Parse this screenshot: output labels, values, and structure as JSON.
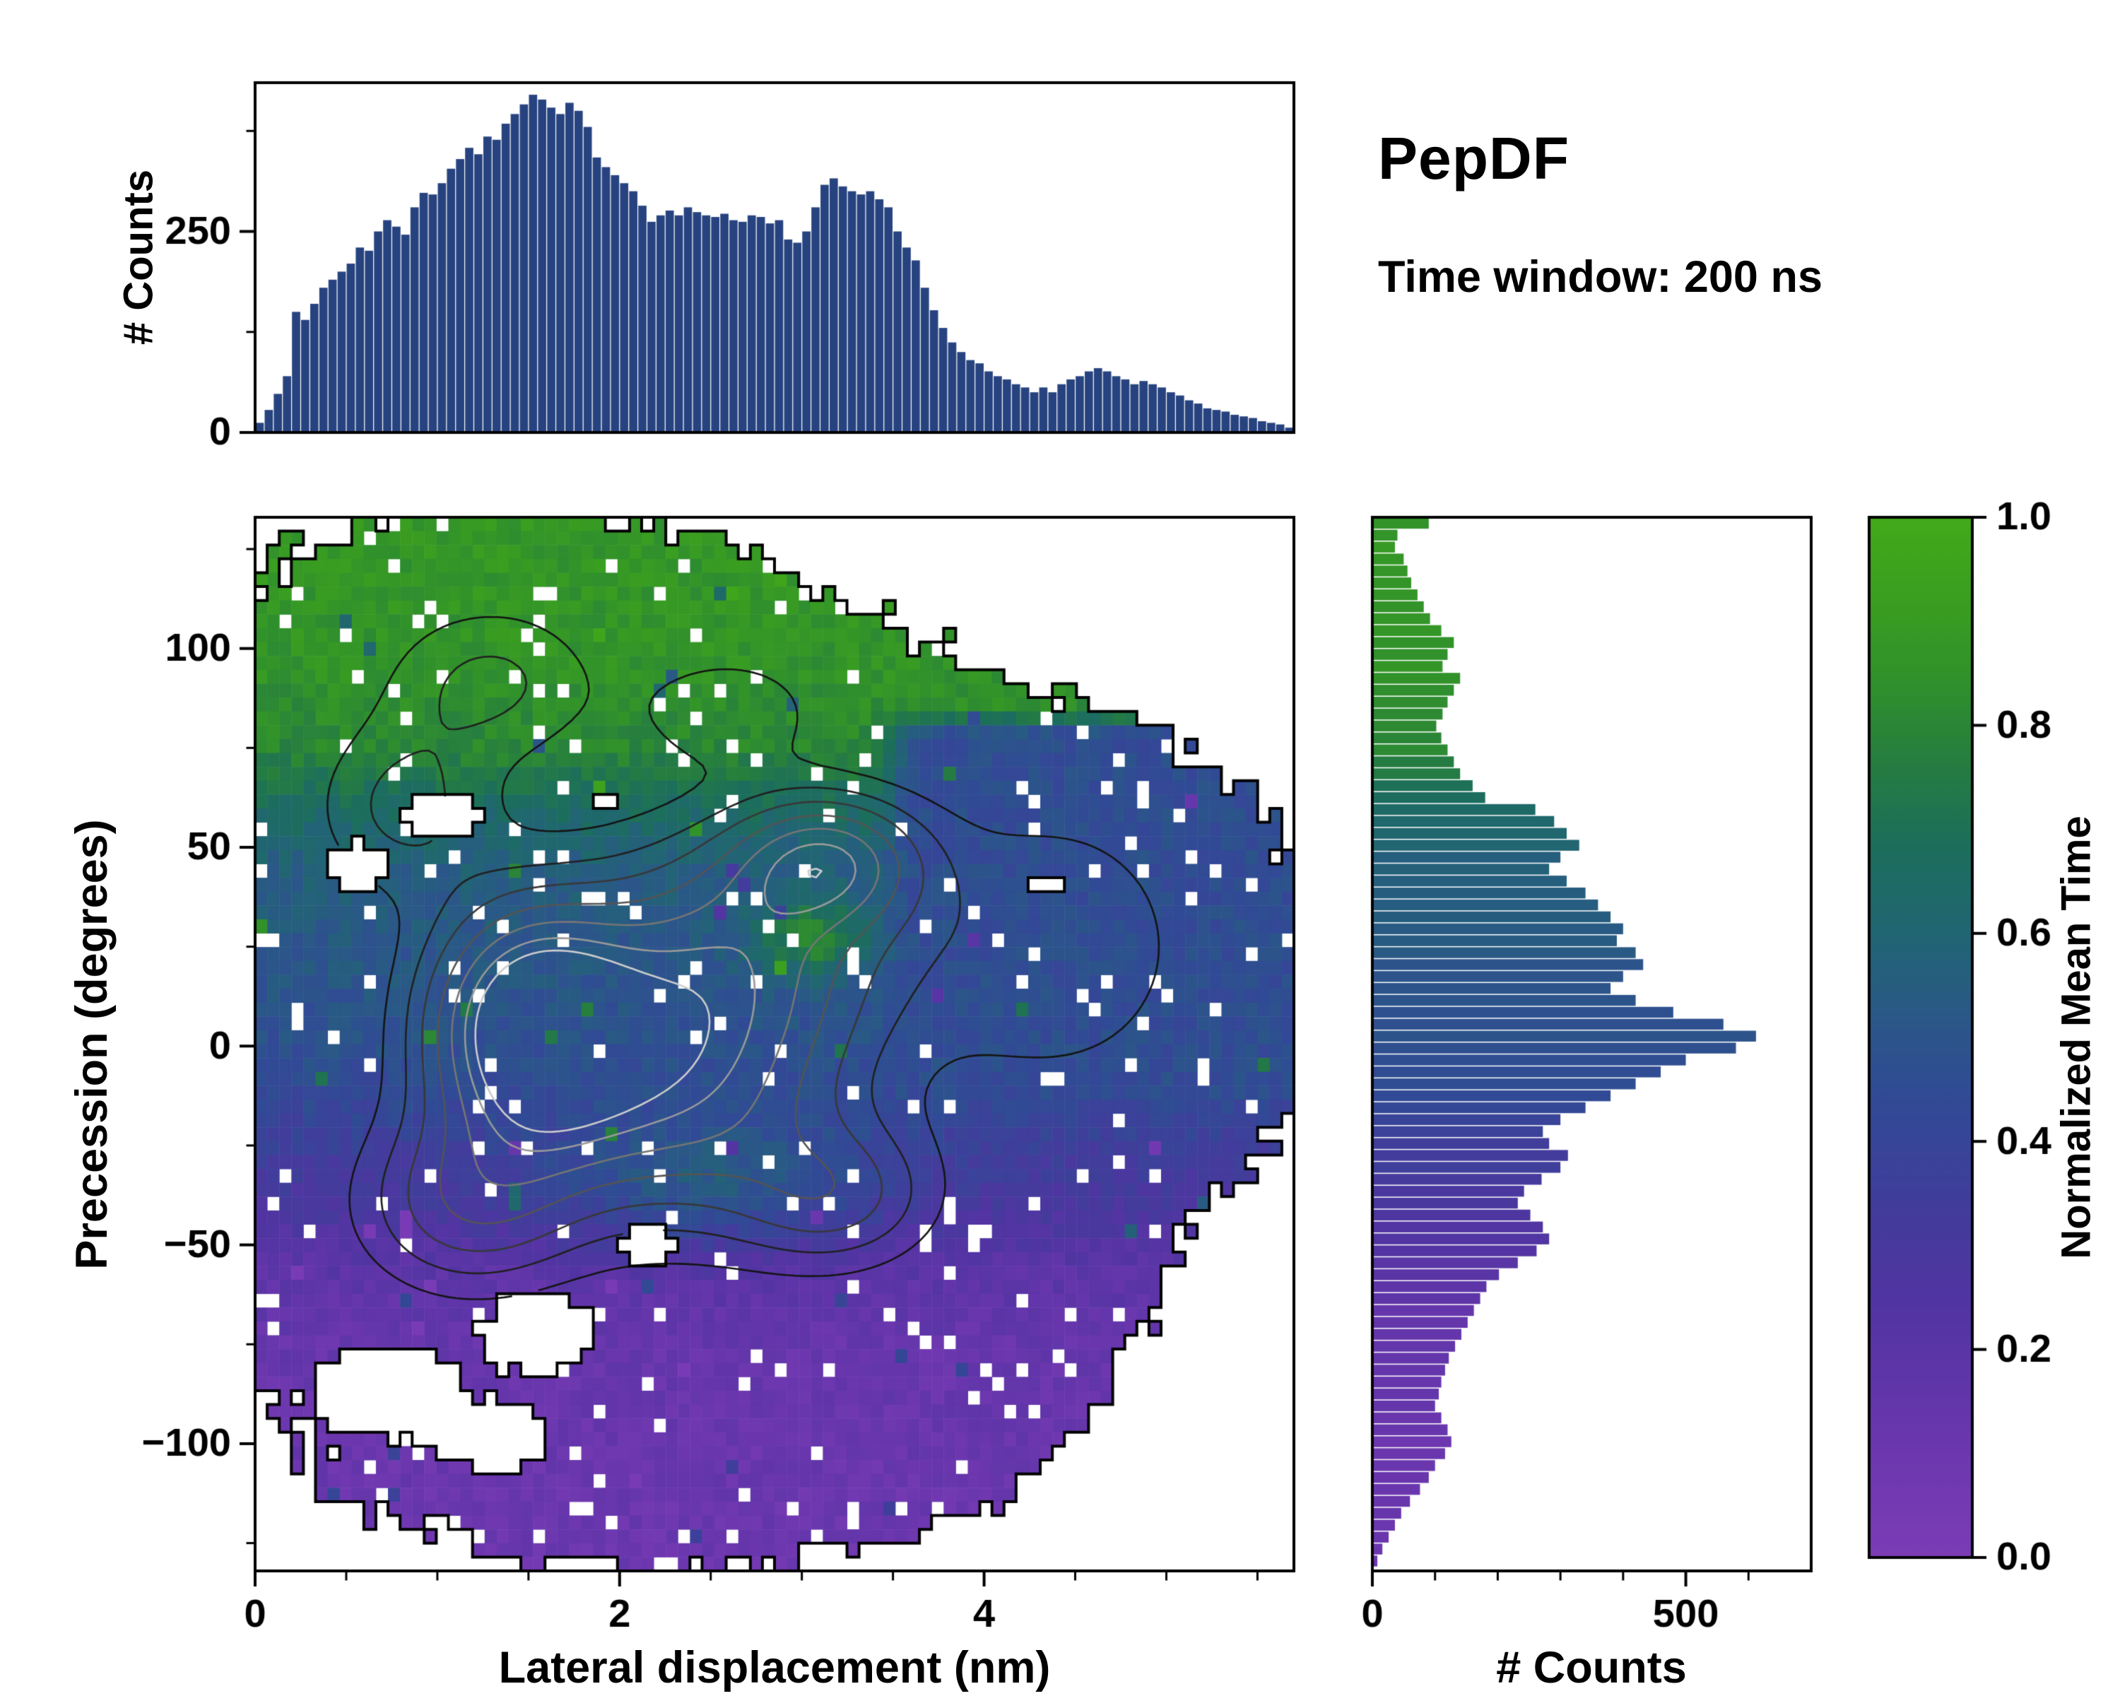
{
  "figure": {
    "title": "PepDF",
    "subtitle": "Time window: 200 ns",
    "background": "#ffffff",
    "text_color": "#000000"
  },
  "labels": {
    "top_ylabel": "# Counts",
    "main_xlabel": "Lateral displacement (nm)",
    "main_ylabel": "Precession (degrees)",
    "right_xlabel": "# Counts",
    "colorbar_label": "Normalized Mean Time"
  },
  "colormap": {
    "name": "purple-blue-green",
    "stops": [
      [
        0,
        "#7c3cb6"
      ],
      [
        0.12,
        "#6936ad"
      ],
      [
        0.24,
        "#5234a2"
      ],
      [
        0.34,
        "#413d9b"
      ],
      [
        0.44,
        "#314a95"
      ],
      [
        0.52,
        "#2a5887"
      ],
      [
        0.6,
        "#216573"
      ],
      [
        0.68,
        "#1c6e5c"
      ],
      [
        0.76,
        "#257c41"
      ],
      [
        0.84,
        "#30902c"
      ],
      [
        0.92,
        "#3a9e20"
      ],
      [
        1,
        "#42aa1a"
      ]
    ]
  },
  "chart_data": [
    {
      "id": "top_histogram",
      "type": "bar",
      "ylabel": "# Counts",
      "xlim": [
        0,
        5.7
      ],
      "ylim": [
        0,
        435
      ],
      "bin_start": 0,
      "bin_width": 0.05,
      "yticks": [
        [
          0,
          "0"
        ],
        [
          250,
          "250"
        ]
      ],
      "yticks_minor": [
        125,
        375
      ],
      "bar_color": "#27437f",
      "values": [
        12,
        28,
        48,
        70,
        150,
        140,
        160,
        180,
        190,
        200,
        210,
        230,
        226,
        250,
        264,
        256,
        246,
        280,
        298,
        296,
        310,
        328,
        340,
        354,
        346,
        368,
        364,
        384,
        396,
        408,
        420,
        414,
        404,
        396,
        410,
        400,
        380,
        342,
        330,
        320,
        310,
        300,
        282,
        262,
        270,
        276,
        270,
        280,
        274,
        270,
        268,
        272,
        264,
        262,
        270,
        268,
        260,
        264,
        240,
        236,
        250,
        280,
        308,
        316,
        306,
        300,
        296,
        300,
        290,
        280,
        250,
        230,
        214,
        180,
        152,
        130,
        112,
        100,
        90,
        86,
        76,
        70,
        66,
        60,
        56,
        50,
        56,
        50,
        60,
        66,
        70,
        76,
        80,
        76,
        70,
        66,
        60,
        64,
        60,
        56,
        50,
        46,
        40,
        36,
        30,
        28,
        26,
        22,
        20,
        18,
        14,
        12,
        10,
        6
      ]
    },
    {
      "id": "main_heatmap",
      "type": "heatmap",
      "xlabel": "Lateral displacement (nm)",
      "ylabel": "Precession (degrees)",
      "xlim": [
        0,
        5.7
      ],
      "ylim": [
        -132,
        133
      ],
      "xticks": [
        [
          0,
          "0"
        ],
        [
          2,
          "2"
        ],
        [
          4,
          "4"
        ]
      ],
      "xticks_minor_step": 0.5,
      "yticks": [
        [
          -100,
          "−100"
        ],
        [
          -50,
          "−50"
        ],
        [
          0,
          "0"
        ],
        [
          50,
          "50"
        ],
        [
          100,
          "100"
        ]
      ],
      "yticks_minor_step": 25,
      "grid_nx": 86,
      "grid_ny": 76,
      "seed": 42,
      "value_profile": [
        [
          133,
          0.88
        ],
        [
          95,
          0.86
        ],
        [
          75,
          0.8
        ],
        [
          60,
          0.66
        ],
        [
          45,
          0.56
        ],
        [
          25,
          0.52
        ],
        [
          0,
          0.48
        ],
        [
          -15,
          0.42
        ],
        [
          -30,
          0.33
        ],
        [
          -45,
          0.26
        ],
        [
          -58,
          0.18
        ],
        [
          -75,
          0.13
        ],
        [
          -132,
          0.1
        ]
      ],
      "blue_region": {
        "x_edge": 3.35,
        "y_edge": -18,
        "y_top": 86,
        "value": 0.455
      },
      "teal_band": {
        "cx": 2.5,
        "cy": -35,
        "sx": 0.9,
        "sy": 16,
        "boost": 0.22
      },
      "green_patch": {
        "cx": 3.05,
        "cy": 27,
        "sx": 0.28,
        "sy": 9,
        "boost": 0.3
      },
      "mask_blobs": [
        [
          1.3,
          95,
          1.3,
          38
        ],
        [
          2.6,
          75,
          1.0,
          30
        ],
        [
          1.8,
          30,
          1.6,
          55
        ],
        [
          2.4,
          -20,
          1.7,
          55
        ],
        [
          0.25,
          10,
          0.5,
          55
        ],
        [
          4.2,
          35,
          1.1,
          45
        ],
        [
          4.8,
          10,
          0.9,
          40
        ],
        [
          3.9,
          -40,
          0.8,
          35
        ],
        [
          2.2,
          -90,
          1.6,
          38
        ],
        [
          3.3,
          -75,
          1.0,
          30
        ],
        [
          0.6,
          -40,
          0.55,
          45
        ]
      ],
      "mask_holes": [
        [
          0.75,
          -85,
          0.45,
          14
        ],
        [
          1.6,
          -72,
          0.5,
          16
        ],
        [
          1.35,
          -98,
          0.35,
          10
        ],
        [
          2.15,
          -50,
          0.28,
          9
        ],
        [
          4.35,
          40,
          0.3,
          9
        ],
        [
          1.95,
          63,
          0.3,
          8
        ],
        [
          1.05,
          58,
          0.35,
          10
        ],
        [
          0.55,
          45,
          0.3,
          10
        ]
      ],
      "mask_threshold": 0.32,
      "edge_noise": 0.16,
      "speckle_fraction": 0.05,
      "value_noise": 0.1,
      "salt_fraction": 0.012,
      "contours": {
        "gaussians": [
          [
            1.5,
            5,
            0.55,
            30,
            1.0
          ],
          [
            2.3,
            -8,
            0.9,
            36,
            0.75
          ],
          [
            3.15,
            47,
            0.5,
            16,
            0.6
          ],
          [
            2.7,
            28,
            0.85,
            30,
            0.5
          ],
          [
            1.15,
            -40,
            0.6,
            22,
            0.45
          ],
          [
            3.2,
            -38,
            0.55,
            18,
            0.38
          ],
          [
            1.3,
            92,
            0.6,
            20,
            0.3
          ],
          [
            2.6,
            85,
            0.5,
            14,
            0.25
          ],
          [
            0.8,
            60,
            0.5,
            22,
            0.3
          ],
          [
            4.4,
            25,
            0.8,
            38,
            0.26
          ]
        ],
        "levels": [
          0.16,
          0.28,
          0.4,
          0.54,
          0.68,
          0.82,
          0.93
        ],
        "colors": [
          "#141414",
          "#202020",
          "#383838",
          "#545454",
          "#757575",
          "#999999",
          "#cccccc"
        ]
      },
      "outline": {
        "color": "#000000",
        "width": 4
      }
    },
    {
      "id": "right_histogram",
      "type": "bar",
      "orientation": "horizontal",
      "xlabel": "# Counts",
      "xlim": [
        0,
        700
      ],
      "ylim": [
        -132,
        133
      ],
      "bin_start": 133,
      "bin_height": 3,
      "xticks": [
        [
          0,
          "0"
        ],
        [
          500,
          "500"
        ]
      ],
      "xticks_minor": [
        100,
        200,
        300,
        400,
        600
      ],
      "color_by": "value_profile",
      "values": [
        90,
        40,
        36,
        50,
        56,
        62,
        72,
        82,
        92,
        110,
        130,
        120,
        112,
        140,
        130,
        120,
        112,
        102,
        110,
        120,
        130,
        140,
        160,
        180,
        260,
        290,
        310,
        330,
        300,
        282,
        310,
        340,
        360,
        380,
        400,
        390,
        420,
        432,
        400,
        380,
        420,
        480,
        560,
        612,
        580,
        500,
        460,
        420,
        380,
        340,
        300,
        272,
        282,
        312,
        300,
        270,
        242,
        232,
        252,
        272,
        282,
        262,
        232,
        202,
        182,
        172,
        162,
        152,
        142,
        132,
        122,
        116,
        110,
        106,
        100,
        110,
        120,
        126,
        116,
        100,
        90,
        76,
        60,
        46,
        36,
        26,
        16,
        8
      ]
    },
    {
      "id": "colorbar",
      "type": "colorbar",
      "label": "Normalized Mean Time",
      "range": [
        0,
        1
      ],
      "ticks": [
        [
          0,
          "0.0"
        ],
        [
          0.2,
          "0.2"
        ],
        [
          0.4,
          "0.4"
        ],
        [
          0.6,
          "0.6"
        ],
        [
          0.8,
          "0.8"
        ],
        [
          1,
          "1.0"
        ]
      ]
    }
  ]
}
